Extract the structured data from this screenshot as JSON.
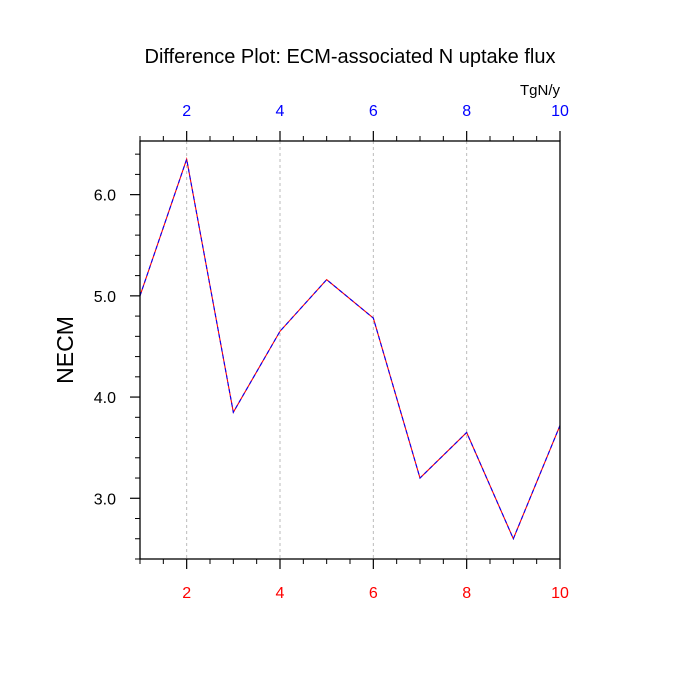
{
  "chart_data": {
    "type": "line",
    "title": "Difference Plot: ECM-associated N uptake flux",
    "ylabel": "NECM",
    "top_axis_units": "TgN/y",
    "x": [
      1,
      2,
      3,
      4,
      5,
      6,
      7,
      8,
      9,
      10
    ],
    "series": [
      {
        "values": [
          5.0,
          6.35,
          3.85,
          4.65,
          5.16,
          4.78,
          3.2,
          3.65,
          2.6,
          3.72
        ]
      }
    ],
    "xlim": [
      1,
      10
    ],
    "ylim": [
      2.4,
      6.53
    ],
    "x_ticks": [
      2,
      4,
      6,
      8,
      10
    ],
    "x_tick_labels": [
      "2",
      "4",
      "6",
      "8",
      "10"
    ],
    "y_ticks": [
      3.0,
      4.0,
      5.0,
      6.0
    ],
    "y_tick_labels": [
      "3.0",
      "4.0",
      "5.0",
      "6.0"
    ],
    "x_minor_step": 0.5,
    "y_minor_step": 0.2,
    "vertical_grid": true,
    "colors": {
      "line_a": "#ff0000",
      "line_b": "#0000ff",
      "bottom_ticks": "#ff0000",
      "top_ticks": "#0000ff",
      "grid": "#bbbbbb"
    }
  }
}
